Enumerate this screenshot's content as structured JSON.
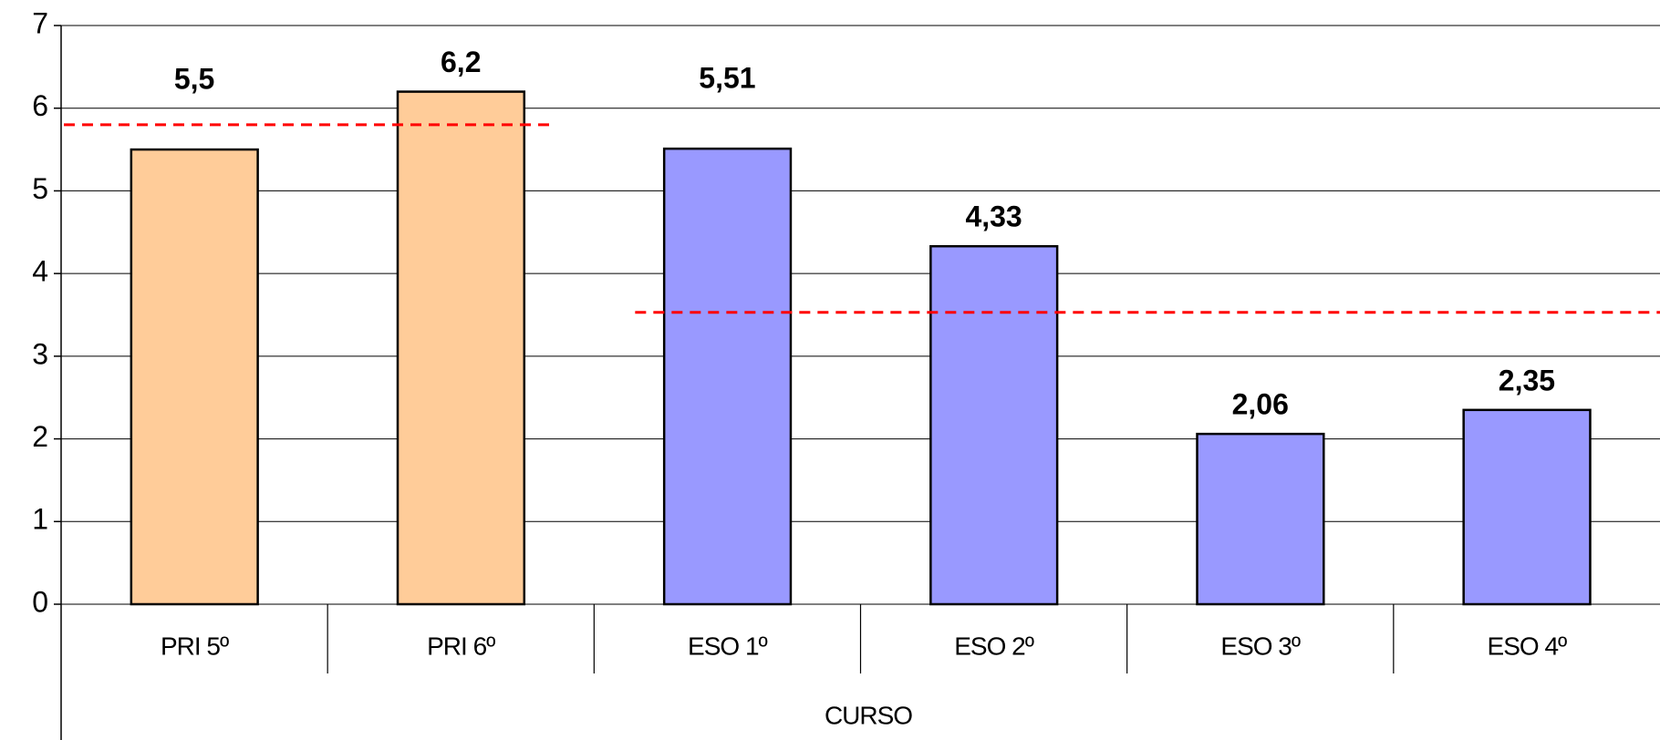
{
  "chart_data": {
    "type": "bar",
    "x_label": "CURSO",
    "categories": [
      "PRI 5º",
      "PRI 6º",
      "ESO 1º",
      "ESO 2º",
      "ESO 3º",
      "ESO 4º"
    ],
    "values": [
      5.5,
      6.2,
      5.51,
      4.33,
      2.06,
      2.35
    ],
    "value_labels": [
      "5,5",
      "6,2",
      "5,51",
      "4,33",
      "2,06",
      "2,35"
    ],
    "colors": [
      "#ffcc99",
      "#ffcc99",
      "#9999ff",
      "#9999ff",
      "#9999ff",
      "#9999ff"
    ],
    "ylim": [
      0,
      7
    ],
    "yticks": [
      0,
      1,
      2,
      3,
      4,
      5,
      6,
      7
    ],
    "grid": true,
    "reference_lines": [
      {
        "value": 5.8,
        "span": [
          0,
          1
        ],
        "color": "#ff0000"
      },
      {
        "value": 3.53,
        "span": [
          2,
          5
        ],
        "color": "#ff0000"
      }
    ]
  }
}
